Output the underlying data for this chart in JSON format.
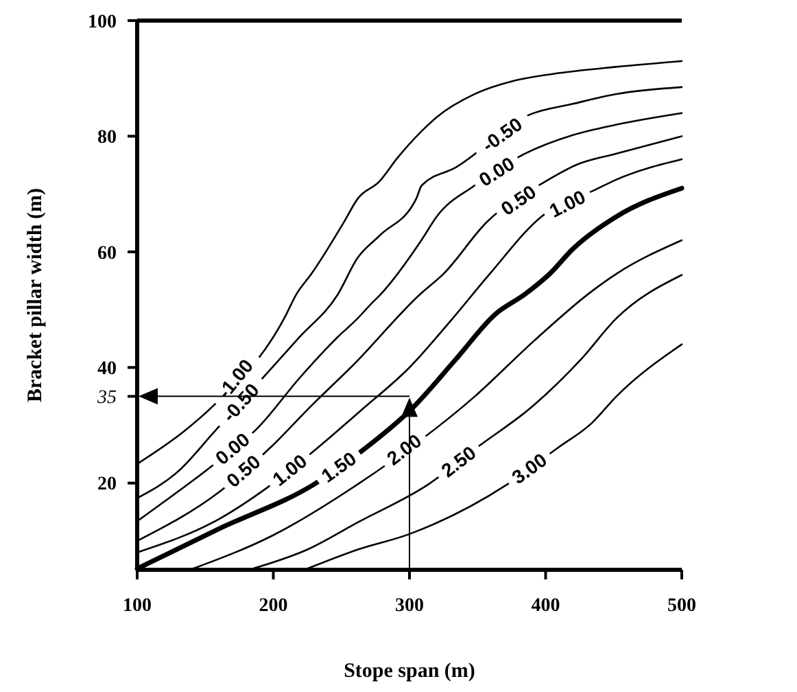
{
  "chart_data": {
    "type": "line",
    "xlabel": "Stope span (m)",
    "ylabel": "Bracket pillar width (m)",
    "xlim": [
      100,
      500
    ],
    "ylim": [
      5,
      100
    ],
    "xticks": [
      100,
      200,
      300,
      400,
      500
    ],
    "yticks": [
      20,
      {
        "value": 35,
        "label": "35"
      },
      40,
      60,
      80,
      100
    ],
    "grid": false,
    "ref_lines": [
      {
        "axis": "y",
        "value": 35
      },
      {
        "axis": "x",
        "value": 300
      }
    ],
    "marker": "none",
    "line_style": "solid",
    "series": [
      {
        "name": "-1.00",
        "color": "#000000",
        "x": [
          100,
          133,
          156,
          208,
          217,
          228,
          252,
          262,
          278,
          291,
          309,
          320,
          348,
          377,
          406,
          452,
          500
        ],
        "values": [
          23.3,
          28.7,
          33.4,
          48.5,
          52.7,
          56.2,
          65.2,
          69.2,
          72.2,
          76.2,
          80.9,
          83.3,
          87.3,
          89.6,
          90.8,
          92,
          93
        ]
      },
      {
        "name": "-0.50",
        "color": "#000000",
        "x": [
          100,
          130,
          156,
          219,
          247,
          262,
          278,
          305,
          309,
          334,
          389,
          420,
          452,
          500
        ],
        "values": [
          17.4,
          22,
          28.7,
          45.2,
          52.5,
          59,
          62.8,
          69.2,
          71.5,
          74.6,
          83.8,
          85.6,
          87.3,
          88.5
        ]
      },
      {
        "name": "0.00",
        "color": "#000000",
        "x": [
          100,
          124,
          153,
          190,
          219,
          247,
          262,
          271,
          279,
          309,
          320,
          348,
          385,
          420,
          452,
          500
        ],
        "values": [
          13.4,
          17.5,
          22.6,
          29.9,
          38.1,
          45.2,
          48.5,
          50.8,
          52.7,
          62.1,
          66.1,
          71.5,
          77,
          80.2,
          82,
          84
        ]
      },
      {
        "name": "0.50",
        "color": "#000000",
        "x": [
          100,
          161,
          199,
          228,
          259,
          308,
          325,
          357,
          400,
          423,
          452,
          500
        ],
        "values": [
          10,
          18.6,
          26.4,
          33.4,
          40.5,
          52.7,
          56.2,
          65.2,
          72.2,
          75.1,
          77,
          80
        ]
      },
      {
        "name": "1.00",
        "color": "#000000",
        "x": [
          100,
          161,
          196,
          230,
          265,
          300,
          330,
          359,
          397,
          437,
          452,
          500
        ],
        "values": [
          8,
          13.9,
          19.3,
          25.6,
          32.7,
          40,
          48,
          56.2,
          66.1,
          70.8,
          72.5,
          76
        ]
      },
      {
        "name": "1.50",
        "color": "#000000",
        "x": [
          100,
          161,
          230,
          268,
          301,
          334,
          363,
          385,
          403,
          420,
          452,
          500
        ],
        "values": [
          5.2,
          12.2,
          19.8,
          26.1,
          32.7,
          41.4,
          49.2,
          52.7,
          56.2,
          60.5,
          66.1,
          71
        ]
      },
      {
        "name": "2.00",
        "color": "#000000",
        "x": [
          141,
          200,
          262,
          348,
          391,
          434,
          452,
          500
        ],
        "values": [
          5.2,
          11,
          19.8,
          35,
          44.5,
          53.2,
          56.2,
          62
        ]
      },
      {
        "name": "2.50",
        "color": "#000000",
        "x": [
          185,
          225,
          262,
          314,
          351,
          391,
          426,
          452,
          500
        ],
        "values": [
          5.2,
          8.5,
          13.2,
          19.8,
          26.4,
          33.4,
          41.4,
          48.5,
          56
        ]
      },
      {
        "name": "3.00",
        "color": "#000000",
        "x": [
          225,
          262,
          299,
          372,
          409,
          434,
          452,
          500
        ],
        "values": [
          5.2,
          8.5,
          11.1,
          19.8,
          26.1,
          30.4,
          35,
          44
        ]
      }
    ]
  }
}
